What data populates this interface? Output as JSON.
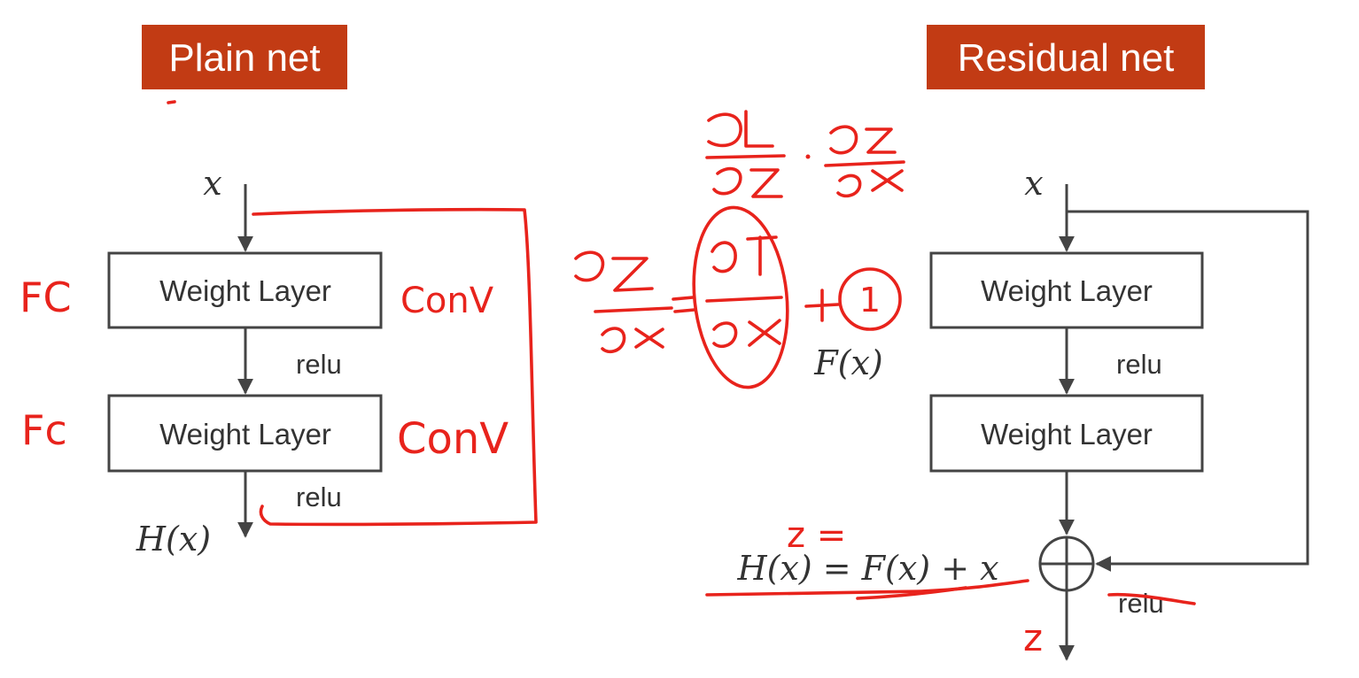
{
  "plain": {
    "title": "Plain net",
    "input": "x",
    "layer1": "Weight Layer",
    "layer2": "Weight Layer",
    "relu1": "relu",
    "relu2": "relu",
    "output": "H(x)"
  },
  "residual": {
    "title": "Residual net",
    "input": "x",
    "layer1": "Weight Layer",
    "layer2": "Weight Layer",
    "relu1": "relu",
    "relu_out": "relu",
    "fx": "F(x)",
    "equation": "H(x) = F(x) + x"
  },
  "annotations": {
    "fc1": "FC",
    "fc2": "Fc",
    "conv1": "ConV",
    "conv2": "ConV",
    "z_eq": "z =",
    "z_out": "z",
    "one": "1"
  },
  "colors": {
    "title_bg": "#c23b14",
    "ink": "#e8231c",
    "line": "#444444"
  }
}
